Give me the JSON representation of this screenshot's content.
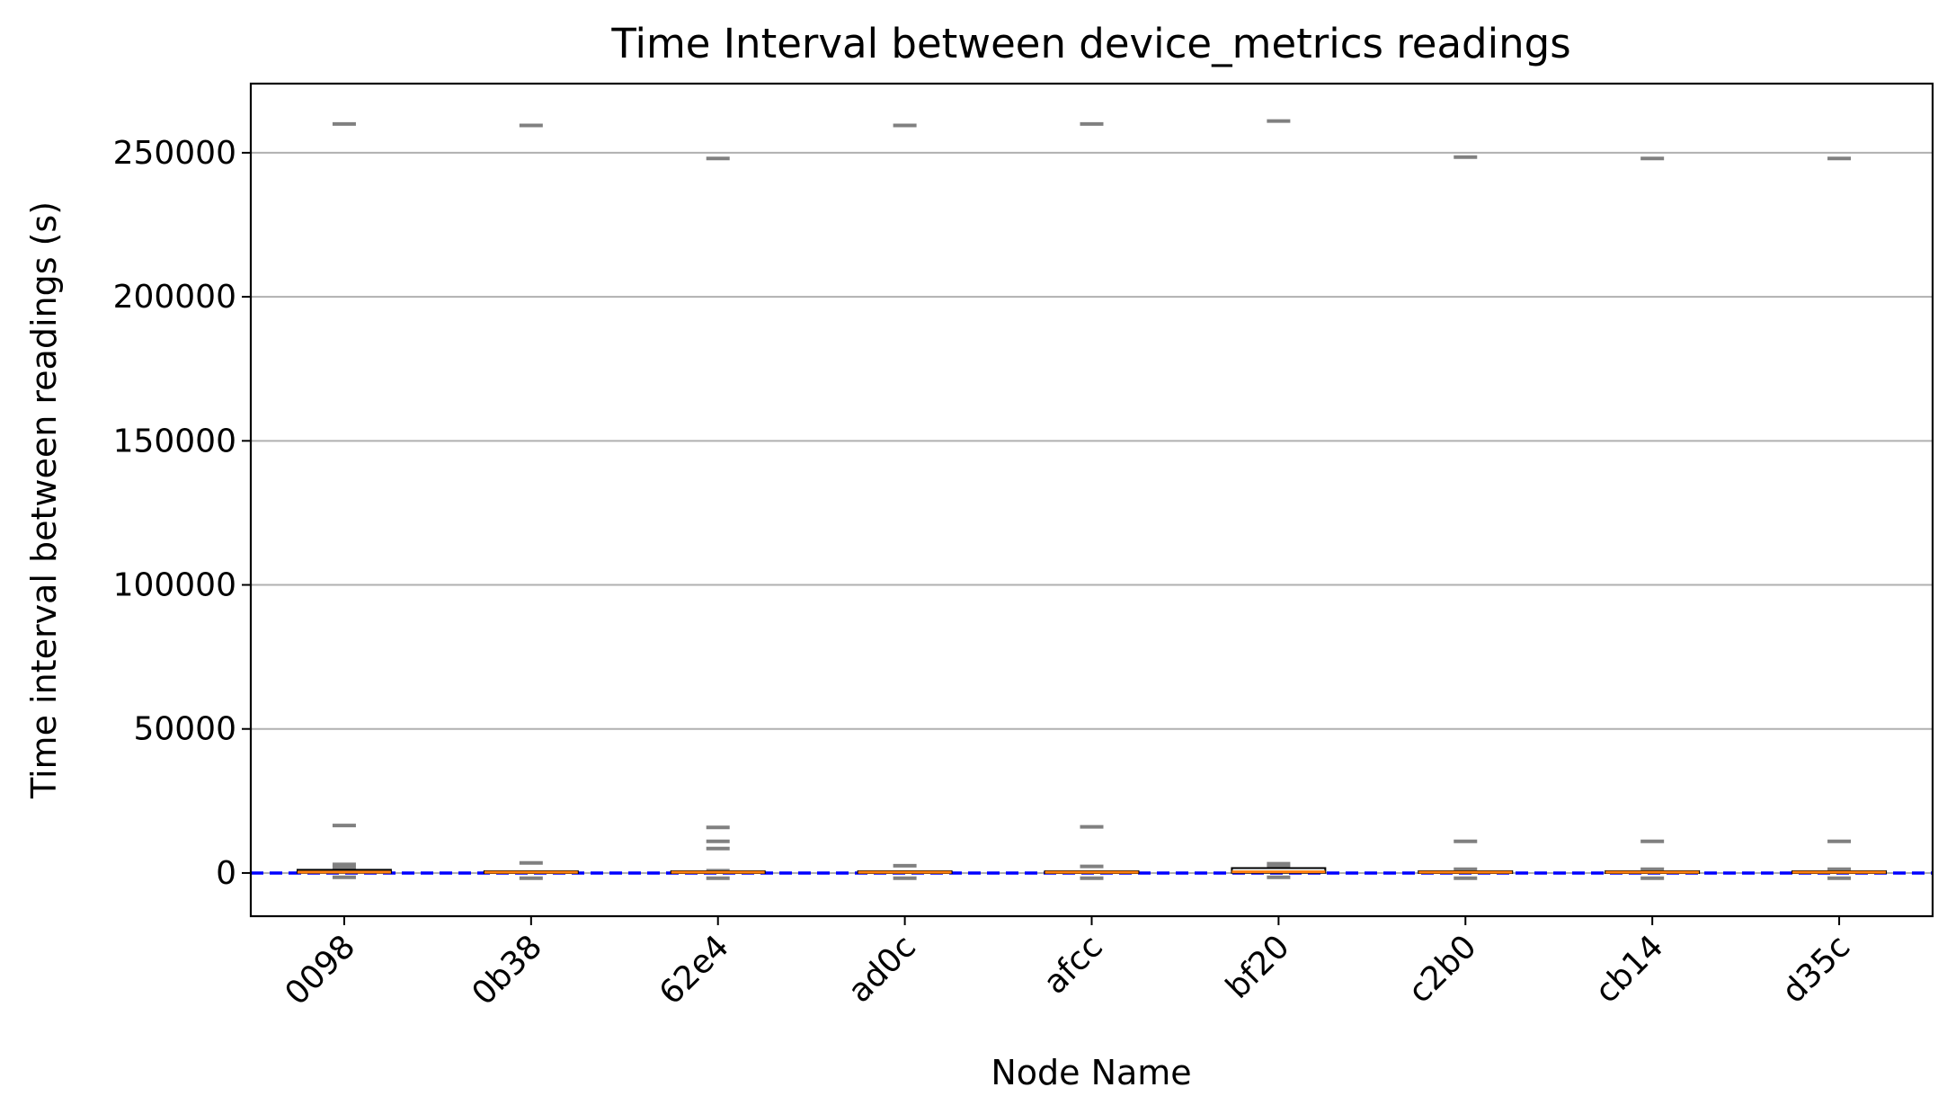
{
  "chart_data": {
    "type": "box",
    "title": "Time Interval between device_metrics readings",
    "xlabel": "Node Name",
    "ylabel": "Time interval between readings (s)",
    "ylim": [
      -15000,
      274000
    ],
    "yticks": [
      0,
      50000,
      100000,
      150000,
      200000,
      250000
    ],
    "ytick_labels": [
      "0",
      "50000",
      "100000",
      "150000",
      "200000",
      "250000"
    ],
    "grid": "y",
    "reference_line": {
      "value": 0,
      "color": "#0000ff",
      "style": "dashed"
    },
    "box_color": "#000000",
    "median_color": "#ff7f0e",
    "outlier_color": "#808080",
    "categories": [
      "0098",
      "0b38",
      "62e4",
      "ad0c",
      "afcc",
      "bf20",
      "c2b0",
      "cb14",
      "d35c"
    ],
    "boxes": [
      {
        "name": "0098",
        "q1": 50,
        "median": 300,
        "q3": 1100,
        "outliers": [
          -1500,
          2000,
          3000,
          16500,
          260000
        ]
      },
      {
        "name": "0b38",
        "q1": 40,
        "median": 250,
        "q3": 600,
        "outliers": [
          -1800,
          3500,
          259500
        ]
      },
      {
        "name": "62e4",
        "q1": 40,
        "median": 250,
        "q3": 600,
        "outliers": [
          -1800,
          800,
          8500,
          11000,
          15800,
          248000
        ]
      },
      {
        "name": "ad0c",
        "q1": 40,
        "median": 250,
        "q3": 600,
        "outliers": [
          -1800,
          2500,
          259500
        ]
      },
      {
        "name": "afcc",
        "q1": 40,
        "median": 250,
        "q3": 600,
        "outliers": [
          -1800,
          2300,
          16000,
          260000
        ]
      },
      {
        "name": "bf20",
        "q1": 80,
        "median": 400,
        "q3": 1700,
        "outliers": [
          -1500,
          2200,
          3200,
          261000
        ]
      },
      {
        "name": "c2b0",
        "q1": 40,
        "median": 250,
        "q3": 600,
        "outliers": [
          -1800,
          1300,
          11000,
          248500
        ]
      },
      {
        "name": "cb14",
        "q1": 40,
        "median": 250,
        "q3": 600,
        "outliers": [
          -1800,
          1300,
          11000,
          248000
        ]
      },
      {
        "name": "d35c",
        "q1": 40,
        "median": 250,
        "q3": 600,
        "outliers": [
          -1800,
          1300,
          11000,
          248000
        ]
      }
    ]
  }
}
